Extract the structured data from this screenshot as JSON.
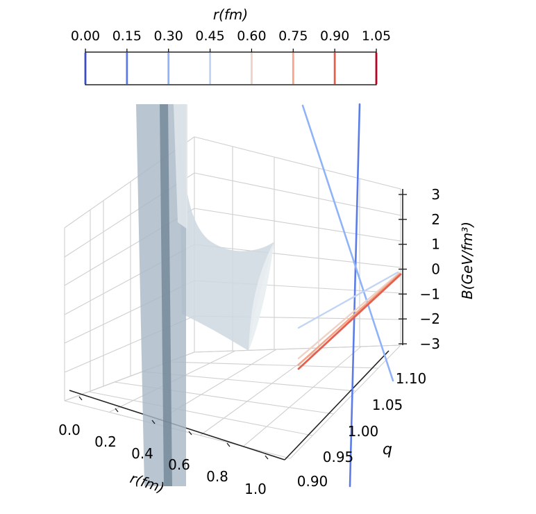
{
  "chart_data": {
    "type": "surface3d",
    "title": "",
    "colorbar": {
      "label": "r(fm)",
      "ticks": [
        "0.00",
        "0.15",
        "0.30",
        "0.45",
        "0.60",
        "0.75",
        "0.90",
        "1.05"
      ],
      "tick_values": [
        0.0,
        0.15,
        0.3,
        0.45,
        0.6,
        0.75,
        0.9,
        1.05
      ],
      "range": [
        0.0,
        1.05
      ],
      "colormap": "coolwarm",
      "line_colors": [
        "#3b4cc0",
        "#5b7ce6",
        "#8fb2f8",
        "#c1d4f4",
        "#ecd3c5",
        "#f4a58a",
        "#e4604e",
        "#b40426"
      ]
    },
    "x_axis": {
      "label": "r(fm)",
      "ticks": [
        "0.0",
        "0.2",
        "0.4",
        "0.6",
        "0.8",
        "1.0"
      ],
      "range": [
        0.0,
        1.0
      ]
    },
    "y_axis": {
      "label": "q",
      "ticks": [
        "0.90",
        "0.95",
        "1.00",
        "1.05",
        "1.10"
      ],
      "range": [
        0.9,
        1.1
      ]
    },
    "z_axis": {
      "label": "B(GeV/fm³)",
      "ticks": [
        "−3",
        "−2",
        "−1",
        "0",
        "1",
        "2",
        "3"
      ],
      "range": [
        -3,
        3
      ]
    },
    "grid": true,
    "surface_color": "#a7b7c5",
    "contour_lines": [
      {
        "r": 0.15,
        "color": "#5b7ce6"
      },
      {
        "r": 0.3,
        "color": "#8fb2f8"
      },
      {
        "r": 0.45,
        "color": "#c1d4f4"
      },
      {
        "r": 0.6,
        "color": "#ecd3c5"
      },
      {
        "r": 0.75,
        "color": "#f4a58a"
      },
      {
        "r": 0.9,
        "color": "#e4604e"
      }
    ]
  }
}
